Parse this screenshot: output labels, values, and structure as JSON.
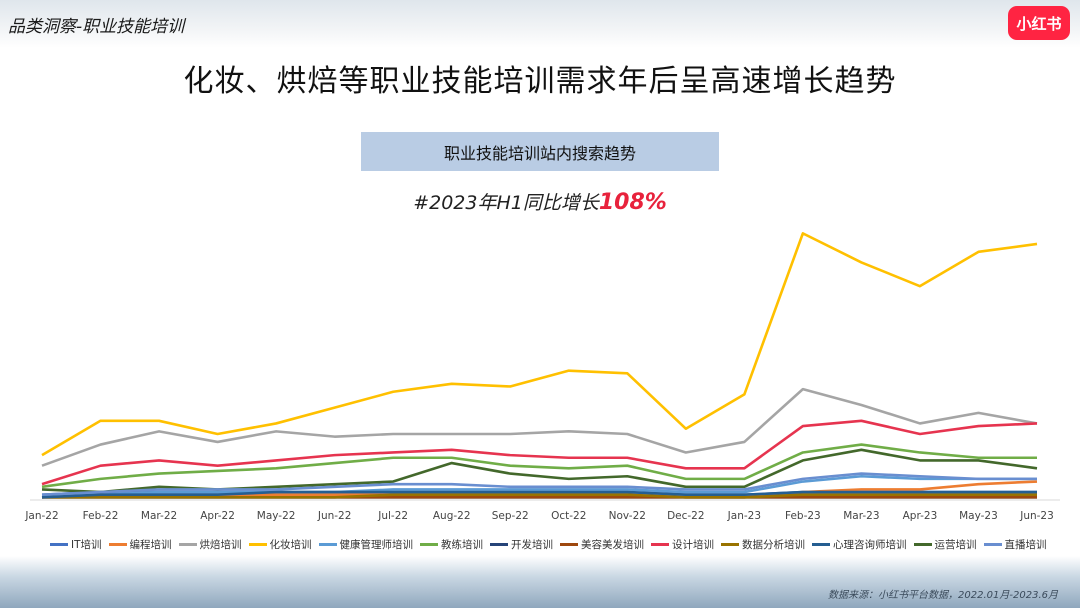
{
  "header": {
    "section_label": "品类洞察-职业技能培训",
    "logo_text": "小红书"
  },
  "title": "化妆、烘焙等职业技能培训需求年后呈高速增长趋势",
  "chart_box_title": "职业技能培训站内搜索趋势",
  "growth": {
    "prefix": "#2023年H1同比增长",
    "value": "108%"
  },
  "source": "数据来源：小红书平台数据，2022.01月-2023.6月",
  "chart_data": {
    "type": "line",
    "categories": [
      "Jan-22",
      "Feb-22",
      "Mar-22",
      "Apr-22",
      "May-22",
      "Jun-22",
      "Jul-22",
      "Aug-22",
      "Sep-22",
      "Oct-22",
      "Nov-22",
      "Dec-22",
      "Jan-23",
      "Feb-23",
      "Mar-23",
      "Apr-23",
      "May-23",
      "Jun-23"
    ],
    "ylim": [
      0,
      100
    ],
    "grid": false,
    "legend_position": "bottom",
    "series": [
      {
        "name": "IT培训",
        "color": "#4472c4",
        "values": [
          2,
          3,
          3,
          3,
          3,
          3,
          3,
          3,
          3,
          3,
          3,
          2,
          2,
          3,
          3,
          3,
          3,
          3
        ]
      },
      {
        "name": "编程培训",
        "color": "#ed7d31",
        "values": [
          1,
          2,
          2,
          2,
          2,
          2,
          2,
          2,
          2,
          2,
          2,
          1,
          1,
          3,
          4,
          4,
          6,
          7
        ]
      },
      {
        "name": "烘焙培训",
        "color": "#a5a5a5",
        "values": [
          13,
          21,
          26,
          22,
          26,
          24,
          25,
          25,
          25,
          26,
          25,
          18,
          22,
          42,
          36,
          29,
          33,
          29
        ]
      },
      {
        "name": "化妆培训",
        "color": "#ffc000",
        "values": [
          17,
          30,
          30,
          25,
          29,
          35,
          41,
          44,
          43,
          49,
          48,
          27,
          40,
          101,
          90,
          81,
          94,
          97
        ]
      },
      {
        "name": "健康管理师培训",
        "color": "#5b9bd5",
        "values": [
          2,
          2,
          3,
          3,
          3,
          3,
          4,
          4,
          4,
          4,
          4,
          3,
          3,
          7,
          9,
          8,
          8,
          8
        ]
      },
      {
        "name": "教练培训",
        "color": "#70ad47",
        "values": [
          5,
          8,
          10,
          11,
          12,
          14,
          16,
          16,
          13,
          12,
          13,
          8,
          8,
          18,
          21,
          18,
          16,
          16
        ]
      },
      {
        "name": "开发培训",
        "color": "#264478",
        "values": [
          1,
          1,
          1,
          1,
          1,
          1,
          1,
          1,
          1,
          1,
          1,
          1,
          1,
          1,
          1,
          1,
          1,
          1
        ]
      },
      {
        "name": "美容美发培训",
        "color": "#9e480e",
        "values": [
          1,
          1,
          1,
          1,
          1,
          1,
          1,
          1,
          1,
          1,
          1,
          1,
          1,
          1,
          1,
          1,
          1,
          1
        ]
      },
      {
        "name": "设计培训",
        "color": "#e6344f",
        "values": [
          6,
          13,
          15,
          13,
          15,
          17,
          18,
          19,
          17,
          16,
          16,
          12,
          12,
          28,
          30,
          25,
          28,
          29
        ]
      },
      {
        "name": "数据分析培训",
        "color": "#997300",
        "values": [
          1,
          1,
          1,
          1,
          1,
          1,
          2,
          2,
          2,
          2,
          2,
          1,
          1,
          2,
          2,
          2,
          2,
          2
        ]
      },
      {
        "name": "心理咨询师培训",
        "color": "#255e91",
        "values": [
          1,
          2,
          2,
          2,
          3,
          3,
          3,
          3,
          3,
          3,
          3,
          2,
          2,
          3,
          3,
          3,
          3,
          3
        ]
      },
      {
        "name": "运营培训",
        "color": "#43682b",
        "values": [
          4,
          3,
          5,
          4,
          5,
          6,
          7,
          14,
          10,
          8,
          9,
          5,
          5,
          15,
          19,
          15,
          15,
          12
        ]
      },
      {
        "name": "直播培训",
        "color": "#698ed0",
        "values": [
          2,
          3,
          4,
          4,
          4,
          5,
          6,
          6,
          5,
          5,
          5,
          4,
          4,
          8,
          10,
          9,
          8,
          8
        ]
      }
    ]
  }
}
